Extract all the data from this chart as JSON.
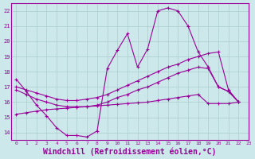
{
  "background_color": "#cce8ea",
  "line_color": "#990099",
  "grid_color": "#aacccc",
  "xlabel": "Windchill (Refroidissement éolien,°C)",
  "xlabel_fontsize": 7,
  "xlim": [
    -0.5,
    23
  ],
  "ylim": [
    13.5,
    22.5
  ],
  "yticks": [
    14,
    15,
    16,
    17,
    18,
    19,
    20,
    21,
    22
  ],
  "xticks": [
    0,
    1,
    2,
    3,
    4,
    5,
    6,
    7,
    8,
    9,
    10,
    11,
    12,
    13,
    14,
    15,
    16,
    17,
    18,
    19,
    20,
    21,
    22,
    23
  ],
  "series": [
    {
      "x": [
        0,
        1,
        2,
        3,
        4,
        5,
        6,
        7,
        8,
        9,
        10,
        11,
        12,
        13,
        14,
        15,
        16,
        17,
        18,
        19,
        20,
        21,
        22
      ],
      "y": [
        17.5,
        16.7,
        15.8,
        15.1,
        14.3,
        13.8,
        13.8,
        13.7,
        14.1,
        18.2,
        19.4,
        20.5,
        18.3,
        19.5,
        22.0,
        22.2,
        22.0,
        21.0,
        19.3,
        18.3,
        17.0,
        16.7,
        16.0
      ]
    },
    {
      "x": [
        0,
        1,
        2,
        3,
        4,
        5,
        6,
        7,
        8,
        9,
        10,
        11,
        12,
        13,
        14,
        15,
        16,
        17,
        18,
        19,
        20,
        21,
        22
      ],
      "y": [
        17.0,
        16.8,
        16.6,
        16.4,
        16.2,
        16.1,
        16.1,
        16.2,
        16.3,
        16.5,
        16.8,
        17.1,
        17.4,
        17.7,
        18.0,
        18.3,
        18.5,
        18.8,
        19.0,
        19.2,
        19.3,
        16.8,
        16.0
      ]
    },
    {
      "x": [
        0,
        1,
        2,
        3,
        4,
        5,
        6,
        7,
        8,
        9,
        10,
        11,
        12,
        13,
        14,
        15,
        16,
        17,
        18,
        19,
        20,
        21,
        22
      ],
      "y": [
        16.8,
        16.5,
        16.2,
        16.0,
        15.8,
        15.7,
        15.7,
        15.7,
        15.8,
        16.0,
        16.3,
        16.5,
        16.8,
        17.0,
        17.3,
        17.6,
        17.9,
        18.1,
        18.3,
        18.2,
        17.0,
        16.7,
        16.0
      ]
    },
    {
      "x": [
        0,
        1,
        2,
        3,
        4,
        5,
        6,
        7,
        8,
        9,
        10,
        11,
        12,
        13,
        14,
        15,
        16,
        17,
        18,
        19,
        20,
        21,
        22
      ],
      "y": [
        15.2,
        15.3,
        15.4,
        15.5,
        15.55,
        15.6,
        15.65,
        15.7,
        15.75,
        15.8,
        15.85,
        15.9,
        15.95,
        16.0,
        16.1,
        16.2,
        16.3,
        16.4,
        16.5,
        15.9,
        15.9,
        15.9,
        16.0
      ]
    }
  ]
}
